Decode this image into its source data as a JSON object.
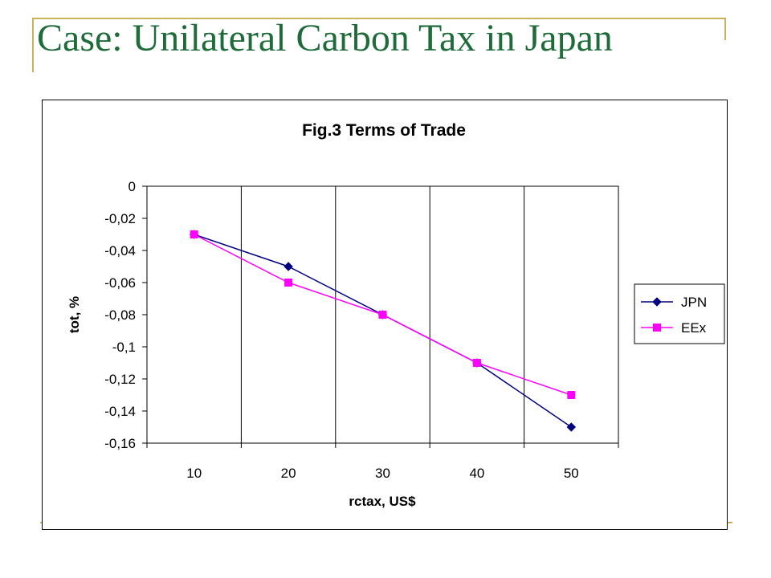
{
  "slide": {
    "title": "Case: Unilateral Carbon Tax in Japan"
  },
  "theme": {
    "title_color": "#1f6b3a",
    "accent_color": "#c9b25a"
  },
  "chart_data": {
    "type": "line",
    "title": "Fig.3 Terms of Trade",
    "xlabel": "rctax, US$",
    "ylabel": "tot, %",
    "categories": [
      "10",
      "20",
      "30",
      "40",
      "50"
    ],
    "y_ticks": [
      "0",
      "-0,02",
      "-0,04",
      "-0,06",
      "-0,08",
      "-0,1",
      "-0,12",
      "-0,14",
      "-0,16"
    ],
    "ylim": [
      -0.16,
      0
    ],
    "grid": "vertical",
    "legend_position": "right",
    "series": [
      {
        "name": "JPN",
        "values": [
          -0.03,
          -0.05,
          -0.08,
          -0.11,
          -0.15
        ],
        "color": "#000080",
        "marker": "diamond"
      },
      {
        "name": "EEx",
        "values": [
          -0.03,
          -0.06,
          -0.08,
          -0.11,
          -0.13
        ],
        "color": "#ff00ff",
        "marker": "square"
      }
    ]
  }
}
